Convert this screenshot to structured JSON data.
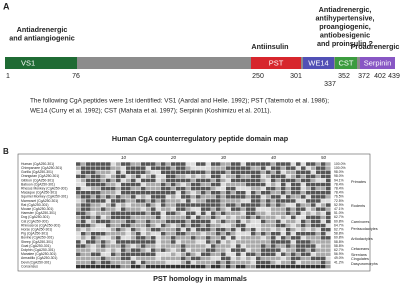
{
  "panel_a": {
    "label": "A",
    "annotations": [
      {
        "lines": [
          "Antiadrenergic",
          "and antiangiogenic"
        ]
      },
      {
        "lines": [
          "Antiinsulin"
        ]
      },
      {
        "lines": [
          "Antiadrenergic,",
          "antihypertensive,",
          "proangiogenic,",
          "antiobesigenic",
          "and proinsulin ?"
        ]
      },
      {
        "lines": [
          "Proadrenergic"
        ]
      }
    ],
    "domains": [
      "VS1",
      "PST",
      "WE14",
      "CST",
      "Serpinin"
    ],
    "positions": [
      "1",
      "76",
      "250",
      "301",
      "337",
      "352",
      "372",
      "402",
      "439"
    ],
    "caption_lines": [
      "The following CgA peptides were 1st identified: VS1 (Aardal and Helle. 1992); PST (Tatemoto et al. 1986);",
      "WE14 (Curry et al. 1992); CST (Mahata et al. 1997); Serpinin (Koshimizu et al. 2011)."
    ],
    "title": "Human CgA counterregulatory peptide domain map"
  },
  "panel_b": {
    "label": "B",
    "ruler": [
      "10",
      "20",
      "30",
      "40",
      "50"
    ],
    "rows": [
      {
        "species": "Human (CgA250-301)",
        "identity": "100.0%"
      },
      {
        "species": "Chimpanzee (CgA250-301)",
        "identity": "100.0%"
      },
      {
        "species": "Gorilla (CgA250-301)",
        "identity": "98.0%"
      },
      {
        "species": "Orangutan (CgA250-301)",
        "identity": "98.0%"
      },
      {
        "species": "Gibbon (CgA250-301)",
        "identity": "94.1%"
      },
      {
        "species": "Baboon (CgA250-301)",
        "identity": "78.4%"
      },
      {
        "species": "Rhesus Monkey (CgA250-301)",
        "identity": "78.4%"
      },
      {
        "species": "Macaque (CgA250-301)",
        "identity": "78.4%"
      },
      {
        "species": "Squirrel Monkey (CgA250-301)",
        "identity": "76.5%"
      },
      {
        "species": "Marmoset (CgA250-301)",
        "identity": "72.5%"
      },
      {
        "species": "Rat (CgA250-301)",
        "identity": "52.9%"
      },
      {
        "species": "Mouse (CgA250-301)",
        "identity": "47.1%"
      },
      {
        "species": "Hamster (CgA250-301)",
        "identity": "51.0%"
      },
      {
        "species": "Dog (CgA250-301)",
        "identity": "62.7%"
      },
      {
        "species": "Cat (CgA250-301)",
        "identity": "60.8%"
      },
      {
        "species": "Rhinoceros (CgA250-301)",
        "identity": "64.7%"
      },
      {
        "species": "Horse (CgA250-301)",
        "identity": "62.7%"
      },
      {
        "species": "Pig (CgA250-301)",
        "identity": "58.8%"
      },
      {
        "species": "Bovine (CgA250-301)",
        "identity": "60.8%"
      },
      {
        "species": "Sheep (CgA250-301)",
        "identity": "58.8%"
      },
      {
        "species": "Goat (CgA250-301)",
        "identity": "58.8%"
      },
      {
        "species": "Dolphin (CgA250-301)",
        "identity": "62.7%"
      },
      {
        "species": "Manatee (CgA250-301)",
        "identity": "56.9%"
      },
      {
        "species": "Armadillo (CgA250-301)",
        "identity": "49.0%"
      },
      {
        "species": "Devil (CgA250-301)",
        "identity": "41.2%"
      },
      {
        "species": "Consensus",
        "identity": ""
      }
    ],
    "groups": [
      "Primates",
      "Rodents",
      "Carnivores",
      "Perissodactyles",
      "Artiodactyles",
      "Cetaceans",
      "Sirenians",
      "Cingulates",
      "Dasyuromorphs"
    ],
    "title": "PST homology in mammals"
  }
}
